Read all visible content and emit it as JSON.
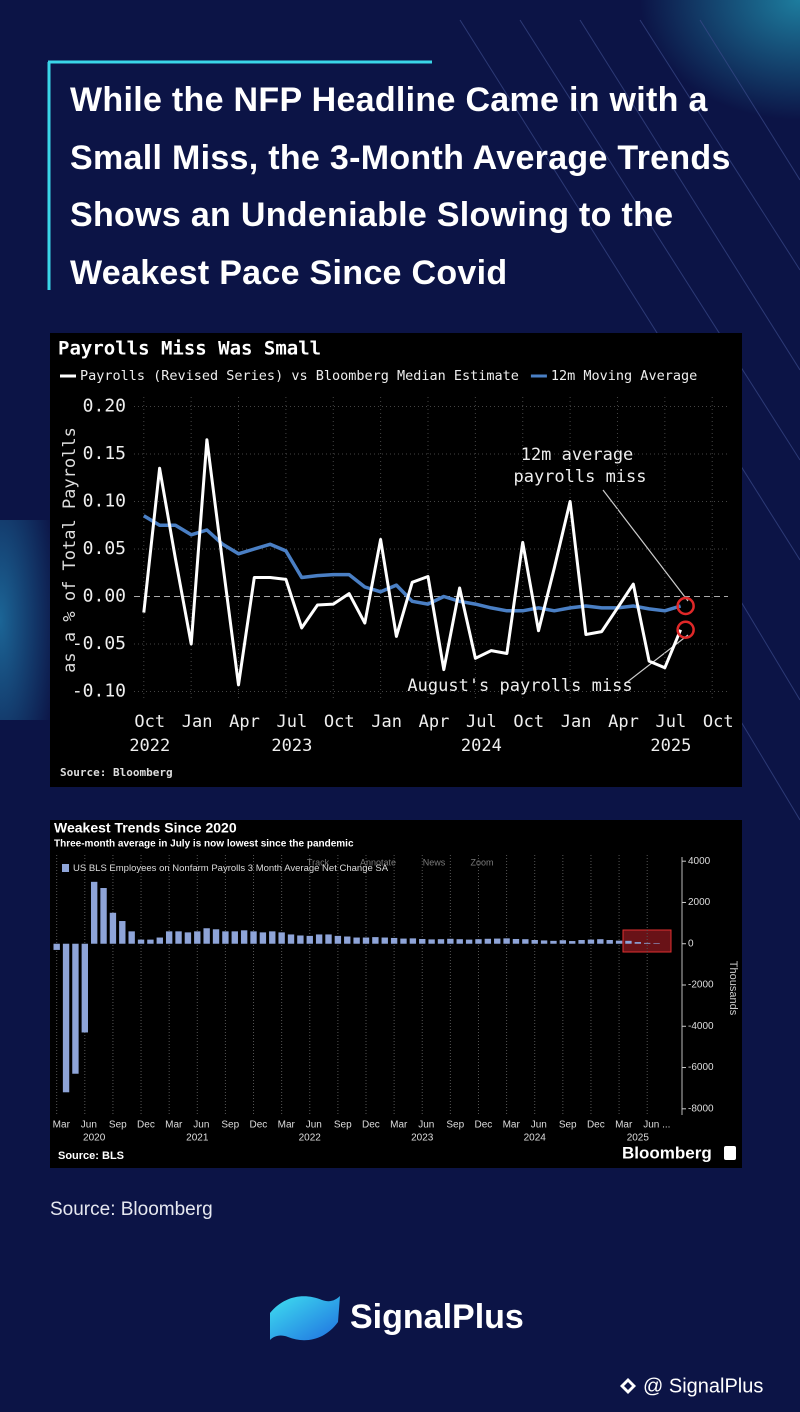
{
  "header": {
    "title": "While the NFP Headline Came in with a Small Miss, the 3-Month Average Trends Shows an Undeniable Slowing to the Weakest Pace Since Covid"
  },
  "chart_data": [
    {
      "type": "line",
      "title": "Payrolls Miss Was Small",
      "y_label": "as a % of Total Payrolls",
      "source": "Source: Bloomberg",
      "x": [
        "2022-10",
        "2022-11",
        "2022-12",
        "2023-01",
        "2023-02",
        "2023-03",
        "2023-04",
        "2023-05",
        "2023-06",
        "2023-07",
        "2023-08",
        "2023-09",
        "2023-10",
        "2023-11",
        "2023-12",
        "2024-01",
        "2024-02",
        "2024-03",
        "2024-04",
        "2024-05",
        "2024-06",
        "2024-07",
        "2024-08",
        "2024-09",
        "2024-10",
        "2024-11",
        "2024-12",
        "2025-01",
        "2025-02",
        "2025-03",
        "2025-04",
        "2025-05",
        "2025-06",
        "2025-07",
        "2025-08"
      ],
      "series": [
        {
          "name": "Payrolls (Revised Series) vs Bloomberg Median Estimate",
          "color": "#ffffff",
          "values": [
            -0.017,
            0.135,
            0.04,
            -0.05,
            0.165,
            0.035,
            -0.093,
            0.02,
            0.02,
            0.018,
            -0.033,
            -0.009,
            -0.008,
            0.003,
            -0.028,
            0.06,
            -0.042,
            0.015,
            0.021,
            -0.077,
            0.009,
            -0.065,
            -0.057,
            -0.06,
            0.057,
            -0.036,
            0.03,
            0.1,
            -0.04,
            -0.037,
            -0.012,
            0.013,
            -0.068,
            -0.075,
            -0.035
          ]
        },
        {
          "name": "12m Moving Average",
          "color": "#4a7fc4",
          "values": [
            0.085,
            0.075,
            0.075,
            0.065,
            0.07,
            0.055,
            0.045,
            0.05,
            0.055,
            0.048,
            0.02,
            0.022,
            0.023,
            0.023,
            0.01,
            0.005,
            0.012,
            -0.005,
            -0.008,
            0,
            -0.005,
            -0.008,
            -0.012,
            -0.015,
            -0.015,
            -0.012,
            -0.015,
            -0.012,
            -0.01,
            -0.012,
            -0.012,
            -0.01,
            -0.013,
            -0.015,
            -0.01
          ]
        }
      ],
      "xlim": [
        "2022-09",
        "2025-11"
      ],
      "xticks": [
        {
          "value": "2022-10",
          "label": "Oct"
        },
        {
          "value": "2023-01",
          "label": "Jan"
        },
        {
          "value": "2023-04",
          "label": "Apr"
        },
        {
          "value": "2023-07",
          "label": "Jul"
        },
        {
          "value": "2023-10",
          "label": "Oct"
        },
        {
          "value": "2024-01",
          "label": "Jan"
        },
        {
          "value": "2024-04",
          "label": "Apr"
        },
        {
          "value": "2024-07",
          "label": "Jul"
        },
        {
          "value": "2024-10",
          "label": "Oct"
        },
        {
          "value": "2025-01",
          "label": "Jan"
        },
        {
          "value": "2025-04",
          "label": "Apr"
        },
        {
          "value": "2025-07",
          "label": "Jul"
        },
        {
          "value": "2025-10",
          "label": "Oct"
        }
      ],
      "year_ticks": [
        {
          "value": "2022-10",
          "label": "2022"
        },
        {
          "value": "2023-07",
          "label": "2023"
        },
        {
          "value": "2024-07",
          "label": "2024"
        },
        {
          "value": "2025-07",
          "label": "2025"
        }
      ],
      "ylim": [
        -0.11,
        0.21
      ],
      "yticks": [
        {
          "value": 0.2,
          "label": "0.20"
        },
        0.15,
        {
          "value": 0.1,
          "label": "0.10"
        },
        0.05,
        {
          "value": 0,
          "label": "0.00"
        },
        -0.05,
        {
          "value": -0.1,
          "label": "-0.10"
        }
      ],
      "grid": true,
      "annotations": [
        "12m average",
        "payrolls miss",
        "August's payrolls miss"
      ]
    },
    {
      "type": "bar",
      "title": "Weakest Trends Since 2020",
      "subtitle": "Three-month average in July is now lowest since the pandemic",
      "y_label": "Thousands",
      "source": "Source: BLS",
      "logo": "Bloomberg",
      "toolbar": [
        "Track",
        "Annotate",
        "News",
        "Zoom"
      ],
      "x": [
        "2020-03",
        "2020-04",
        "2020-05",
        "2020-06",
        "2020-07",
        "2020-08",
        "2020-09",
        "2020-10",
        "2020-11",
        "2020-12",
        "2021-01",
        "2021-02",
        "2021-03",
        "2021-04",
        "2021-05",
        "2021-06",
        "2021-07",
        "2021-08",
        "2021-09",
        "2021-10",
        "2021-11",
        "2021-12",
        "2022-01",
        "2022-02",
        "2022-03",
        "2022-04",
        "2022-05",
        "2022-06",
        "2022-07",
        "2022-08",
        "2022-09",
        "2022-10",
        "2022-11",
        "2022-12",
        "2023-01",
        "2023-02",
        "2023-03",
        "2023-04",
        "2023-05",
        "2023-06",
        "2023-07",
        "2023-08",
        "2023-09",
        "2023-10",
        "2023-11",
        "2023-12",
        "2024-01",
        "2024-02",
        "2024-03",
        "2024-04",
        "2024-05",
        "2024-06",
        "2024-07",
        "2024-08",
        "2024-09",
        "2024-10",
        "2024-11",
        "2024-12",
        "2025-01",
        "2025-02",
        "2025-03",
        "2025-04",
        "2025-05",
        "2025-06",
        "2025-07"
      ],
      "series": [
        {
          "name": "US BLS Employees on Nonfarm Payrolls 3 Month Average Net Change SA",
          "color": "#8ea4d8",
          "values": [
            -300,
            -7200,
            -6300,
            -4300,
            3000,
            2700,
            1500,
            1100,
            600,
            200,
            200,
            300,
            600,
            600,
            550,
            600,
            750,
            700,
            600,
            600,
            650,
            600,
            550,
            600,
            550,
            450,
            400,
            380,
            450,
            450,
            380,
            350,
            300,
            300,
            320,
            300,
            280,
            250,
            260,
            230,
            210,
            220,
            240,
            220,
            200,
            220,
            240,
            250,
            260,
            230,
            220,
            180,
            160,
            140,
            170,
            130,
            180,
            200,
            220,
            180,
            150,
            140,
            80,
            40,
            30
          ]
        }
      ],
      "xlim": [
        "2020-03",
        "2025-10"
      ],
      "xticks": [
        {
          "value": "2020-03",
          "label": "Mar"
        },
        {
          "value": "2020-06",
          "label": "Jun"
        },
        {
          "value": "2020-09",
          "label": "Sep"
        },
        {
          "value": "2020-12",
          "label": "Dec"
        },
        {
          "value": "2021-03",
          "label": "Mar"
        },
        {
          "value": "2021-06",
          "label": "Jun"
        },
        {
          "value": "2021-09",
          "label": "Sep"
        },
        {
          "value": "2021-12",
          "label": "Dec"
        },
        {
          "value": "2022-03",
          "label": "Mar"
        },
        {
          "value": "2022-06",
          "label": "Jun"
        },
        {
          "value": "2022-09",
          "label": "Sep"
        },
        {
          "value": "2022-12",
          "label": "Dec"
        },
        {
          "value": "2023-03",
          "label": "Mar"
        },
        {
          "value": "2023-06",
          "label": "Jun"
        },
        {
          "value": "2023-09",
          "label": "Sep"
        },
        {
          "value": "2023-12",
          "label": "Dec"
        },
        {
          "value": "2024-03",
          "label": "Mar"
        },
        {
          "value": "2024-06",
          "label": "Jun"
        },
        {
          "value": "2024-09",
          "label": "Sep"
        },
        {
          "value": "2024-12",
          "label": "Dec"
        },
        {
          "value": "2025-03",
          "label": "Mar"
        },
        {
          "value": "2025-06",
          "label": "Jun ..."
        }
      ],
      "year_ticks": [
        {
          "value": "2020-07",
          "label": "2020"
        },
        {
          "value": "2021-06",
          "label": "2021"
        },
        {
          "value": "2022-06",
          "label": "2022"
        },
        {
          "value": "2023-06",
          "label": "2023"
        },
        {
          "value": "2024-06",
          "label": "2024"
        },
        {
          "value": "2025-05",
          "label": "2025"
        }
      ],
      "ylim": [
        -8300,
        4300
      ],
      "yticks": [
        4000,
        2000,
        0,
        -2000,
        -4000,
        -6000,
        -8000
      ],
      "grid": true
    }
  ],
  "source": "Source: Bloomberg",
  "brand": "SignalPlus",
  "watermark": "@ SignalPlus"
}
